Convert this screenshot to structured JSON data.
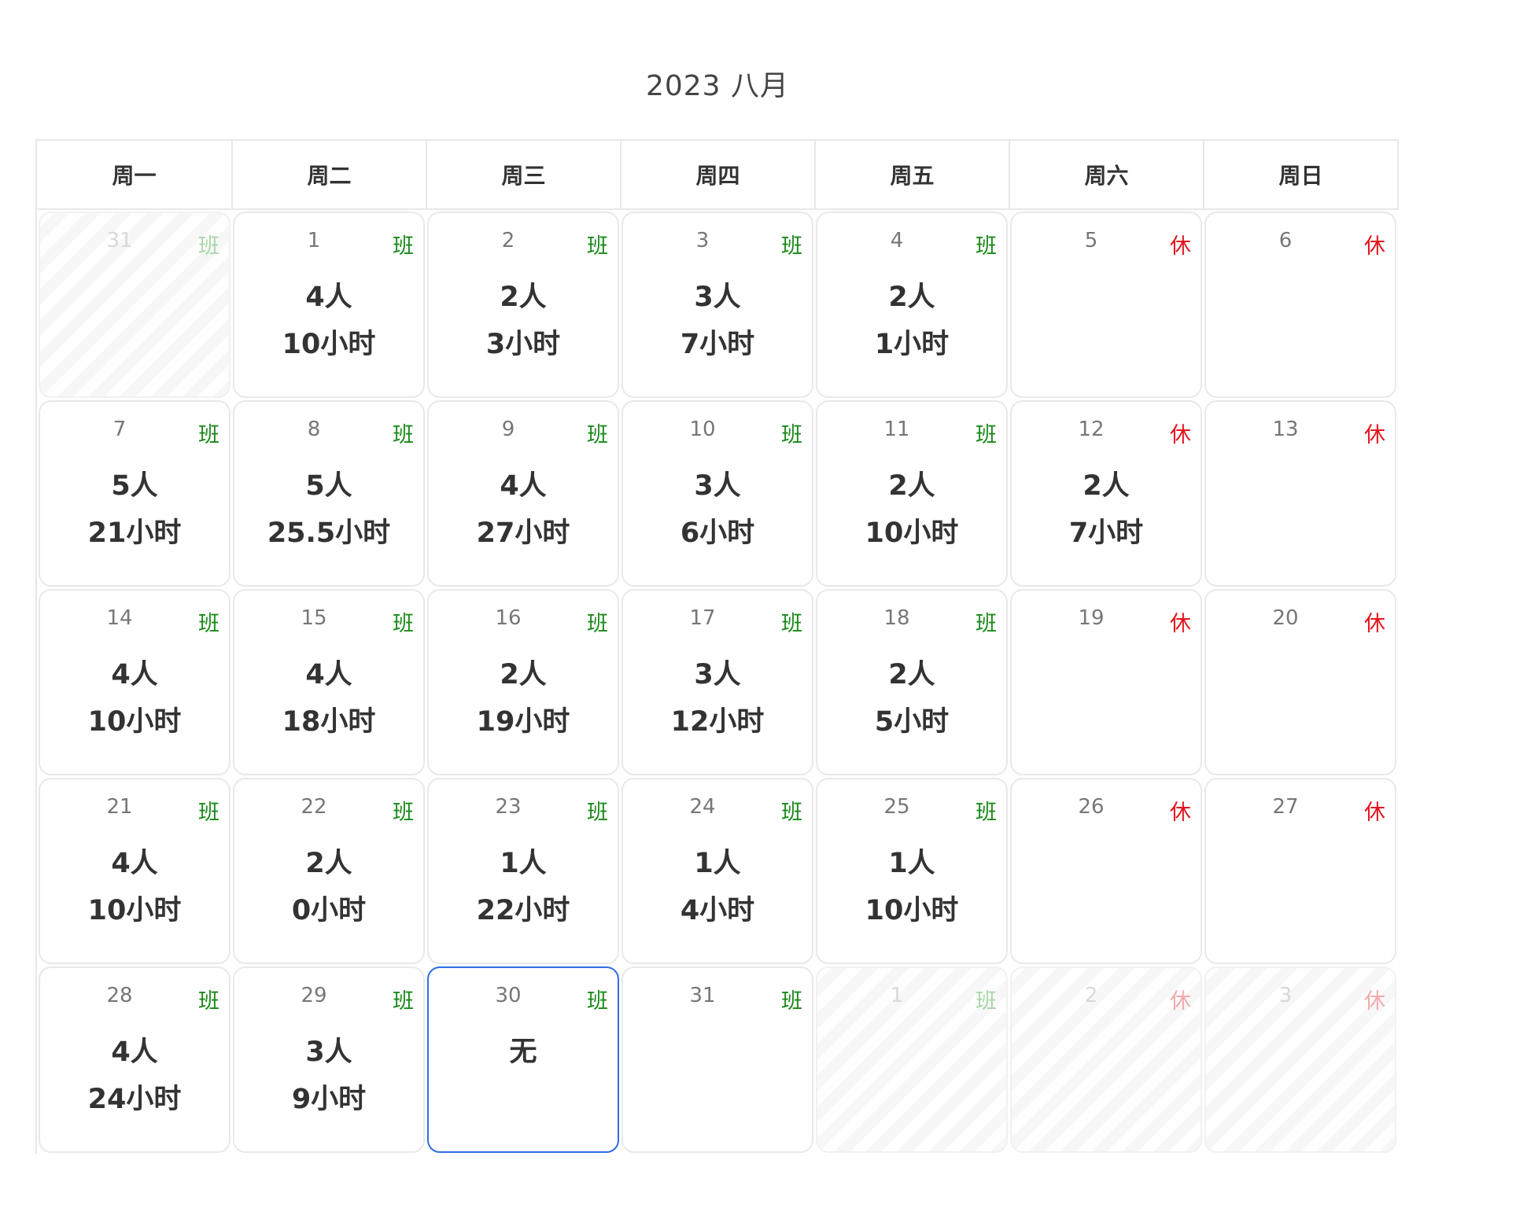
{
  "title": "2023 八月",
  "weekdays": [
    "周一",
    "周二",
    "周三",
    "周四",
    "周五",
    "周六",
    "周日"
  ],
  "colors": {
    "work": "#1a8a1a",
    "rest": "#e4141e",
    "today_border": "#2f6ee5"
  },
  "weeks": [
    [
      {
        "day": "31",
        "tag": "班",
        "tag_type": "work",
        "other": true
      },
      {
        "day": "1",
        "tag": "班",
        "tag_type": "work",
        "people": "4人",
        "hours": "10小时"
      },
      {
        "day": "2",
        "tag": "班",
        "tag_type": "work",
        "people": "2人",
        "hours": "3小时"
      },
      {
        "day": "3",
        "tag": "班",
        "tag_type": "work",
        "people": "3人",
        "hours": "7小时"
      },
      {
        "day": "4",
        "tag": "班",
        "tag_type": "work",
        "people": "2人",
        "hours": "1小时"
      },
      {
        "day": "5",
        "tag": "休",
        "tag_type": "rest"
      },
      {
        "day": "6",
        "tag": "休",
        "tag_type": "rest"
      }
    ],
    [
      {
        "day": "7",
        "tag": "班",
        "tag_type": "work",
        "people": "5人",
        "hours": "21小时"
      },
      {
        "day": "8",
        "tag": "班",
        "tag_type": "work",
        "people": "5人",
        "hours": "25.5小时"
      },
      {
        "day": "9",
        "tag": "班",
        "tag_type": "work",
        "people": "4人",
        "hours": "27小时"
      },
      {
        "day": "10",
        "tag": "班",
        "tag_type": "work",
        "people": "3人",
        "hours": "6小时"
      },
      {
        "day": "11",
        "tag": "班",
        "tag_type": "work",
        "people": "2人",
        "hours": "10小时"
      },
      {
        "day": "12",
        "tag": "休",
        "tag_type": "rest",
        "people": "2人",
        "hours": "7小时"
      },
      {
        "day": "13",
        "tag": "休",
        "tag_type": "rest"
      }
    ],
    [
      {
        "day": "14",
        "tag": "班",
        "tag_type": "work",
        "people": "4人",
        "hours": "10小时"
      },
      {
        "day": "15",
        "tag": "班",
        "tag_type": "work",
        "people": "4人",
        "hours": "18小时"
      },
      {
        "day": "16",
        "tag": "班",
        "tag_type": "work",
        "people": "2人",
        "hours": "19小时"
      },
      {
        "day": "17",
        "tag": "班",
        "tag_type": "work",
        "people": "3人",
        "hours": "12小时"
      },
      {
        "day": "18",
        "tag": "班",
        "tag_type": "work",
        "people": "2人",
        "hours": "5小时"
      },
      {
        "day": "19",
        "tag": "休",
        "tag_type": "rest"
      },
      {
        "day": "20",
        "tag": "休",
        "tag_type": "rest"
      }
    ],
    [
      {
        "day": "21",
        "tag": "班",
        "tag_type": "work",
        "people": "4人",
        "hours": "10小时"
      },
      {
        "day": "22",
        "tag": "班",
        "tag_type": "work",
        "people": "2人",
        "hours": "0小时"
      },
      {
        "day": "23",
        "tag": "班",
        "tag_type": "work",
        "people": "1人",
        "hours": "22小时"
      },
      {
        "day": "24",
        "tag": "班",
        "tag_type": "work",
        "people": "1人",
        "hours": "4小时"
      },
      {
        "day": "25",
        "tag": "班",
        "tag_type": "work",
        "people": "1人",
        "hours": "10小时"
      },
      {
        "day": "26",
        "tag": "休",
        "tag_type": "rest"
      },
      {
        "day": "27",
        "tag": "休",
        "tag_type": "rest"
      }
    ],
    [
      {
        "day": "28",
        "tag": "班",
        "tag_type": "work",
        "people": "4人",
        "hours": "24小时"
      },
      {
        "day": "29",
        "tag": "班",
        "tag_type": "work",
        "people": "3人",
        "hours": "9小时"
      },
      {
        "day": "30",
        "tag": "班",
        "tag_type": "work",
        "people": "无",
        "today": true
      },
      {
        "day": "31",
        "tag": "班",
        "tag_type": "work"
      },
      {
        "day": "1",
        "tag": "班",
        "tag_type": "work",
        "other": true
      },
      {
        "day": "2",
        "tag": "休",
        "tag_type": "rest",
        "other": true
      },
      {
        "day": "3",
        "tag": "休",
        "tag_type": "rest",
        "other": true
      }
    ]
  ]
}
